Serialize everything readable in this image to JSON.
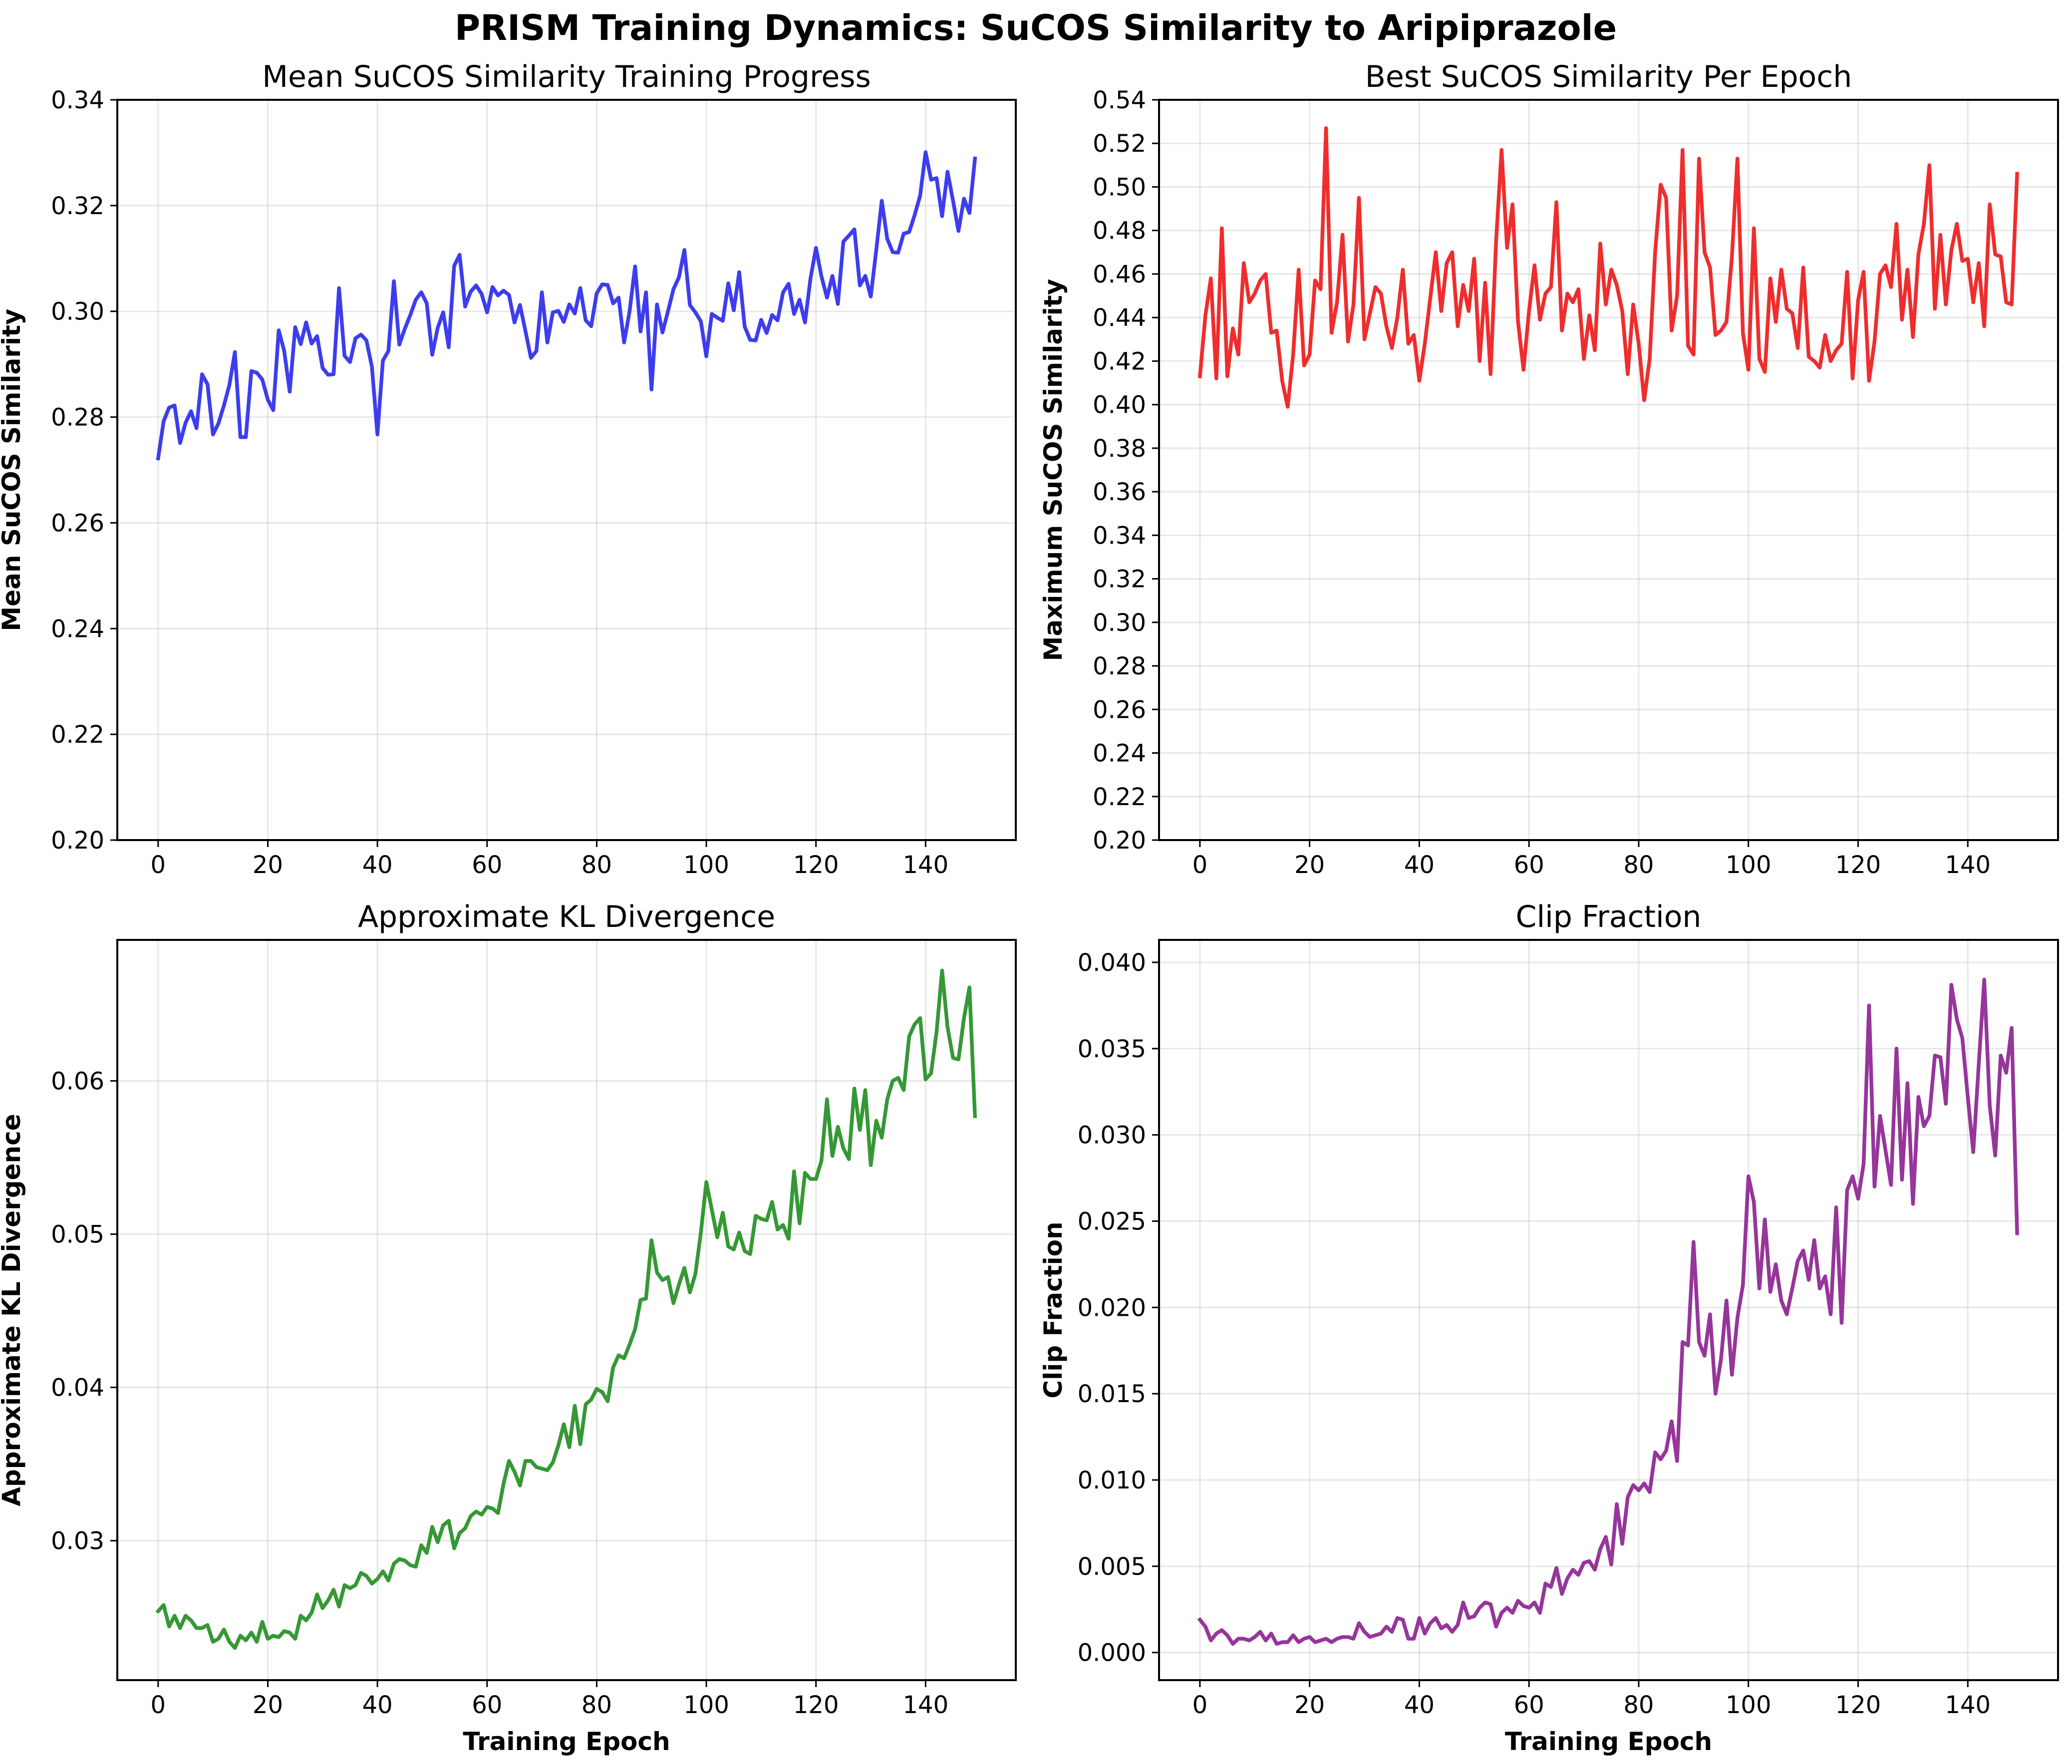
{
  "figure": {
    "title": "PRISM Training Dynamics: SuCOS Similarity to Aripiprazole"
  },
  "chart_data": [
    {
      "type": "line",
      "title": "Mean SuCOS Similarity Training Progress",
      "xlabel": "",
      "ylabel": "Mean SuCOS Similarity",
      "xlim": [
        -7.45,
        156.45
      ],
      "ylim": [
        0.2,
        0.34
      ],
      "xticks": [
        0,
        20,
        40,
        60,
        80,
        100,
        120,
        140
      ],
      "xtick_labels": [
        "0",
        "20",
        "40",
        "60",
        "80",
        "100",
        "120",
        "140"
      ],
      "yticks": [
        0.2,
        0.22,
        0.24,
        0.26,
        0.28,
        0.3,
        0.32,
        0.34
      ],
      "ytick_labels": [
        "0.20",
        "0.22",
        "0.24",
        "0.26",
        "0.28",
        "0.30",
        "0.32",
        "0.34"
      ],
      "grid": true,
      "color": "#3333ee",
      "series": [
        {
          "values": [
            0.2722,
            0.2792,
            0.2818,
            0.2822,
            0.2751,
            0.2789,
            0.2811,
            0.2779,
            0.2881,
            0.2862,
            0.2767,
            0.2788,
            0.2822,
            0.2861,
            0.2923,
            0.2762,
            0.2762,
            0.2887,
            0.2884,
            0.2871,
            0.2833,
            0.2813,
            0.2964,
            0.2925,
            0.2848,
            0.297,
            0.2938,
            0.2979,
            0.2939,
            0.2953,
            0.2893,
            0.288,
            0.2881,
            0.3044,
            0.2916,
            0.2904,
            0.2949,
            0.2956,
            0.2945,
            0.2895,
            0.2767,
            0.2907,
            0.2925,
            0.3057,
            0.2937,
            0.2967,
            0.2993,
            0.3022,
            0.3036,
            0.3015,
            0.2918,
            0.2969,
            0.2998,
            0.2932,
            0.3086,
            0.3107,
            0.3009,
            0.3037,
            0.3049,
            0.3033,
            0.2998,
            0.3046,
            0.303,
            0.3039,
            0.3031,
            0.2979,
            0.3012,
            0.2963,
            0.2912,
            0.2925,
            0.3036,
            0.2941,
            0.2998,
            0.3001,
            0.298,
            0.3013,
            0.2996,
            0.3044,
            0.2983,
            0.2972,
            0.3034,
            0.3051,
            0.305,
            0.3015,
            0.3026,
            0.2941,
            0.3,
            0.3085,
            0.2962,
            0.3036,
            0.2852,
            0.3013,
            0.296,
            0.3,
            0.3042,
            0.3064,
            0.3116,
            0.3012,
            0.2998,
            0.2981,
            0.2915,
            0.2995,
            0.2988,
            0.2982,
            0.3053,
            0.3002,
            0.3074,
            0.2971,
            0.2946,
            0.2945,
            0.2984,
            0.2959,
            0.2993,
            0.2983,
            0.3036,
            0.3052,
            0.2995,
            0.3022,
            0.2979,
            0.3062,
            0.312,
            0.3066,
            0.3026,
            0.3067,
            0.3014,
            0.3132,
            0.3143,
            0.3155,
            0.3049,
            0.3067,
            0.3028,
            0.3116,
            0.3209,
            0.3137,
            0.3112,
            0.3111,
            0.3147,
            0.315,
            0.3182,
            0.3219,
            0.3301,
            0.3249,
            0.3252,
            0.318,
            0.3264,
            0.3209,
            0.3152,
            0.3213,
            0.3186,
            0.3289
          ]
        }
      ]
    },
    {
      "type": "line",
      "title": "Best SuCOS Similarity Per Epoch",
      "xlabel": "",
      "ylabel": "Maximum SuCOS Similarity",
      "xlim": [
        -7.45,
        156.45
      ],
      "ylim": [
        0.2,
        0.54
      ],
      "xticks": [
        0,
        20,
        40,
        60,
        80,
        100,
        120,
        140
      ],
      "xtick_labels": [
        "0",
        "20",
        "40",
        "60",
        "80",
        "100",
        "120",
        "140"
      ],
      "yticks": [
        0.2,
        0.22,
        0.24,
        0.26,
        0.28,
        0.3,
        0.32,
        0.34,
        0.36,
        0.38,
        0.4,
        0.42,
        0.44,
        0.46,
        0.48,
        0.5,
        0.52,
        0.54
      ],
      "ytick_labels": [
        "0.20",
        "0.22",
        "0.24",
        "0.26",
        "0.28",
        "0.30",
        "0.32",
        "0.34",
        "0.36",
        "0.38",
        "0.40",
        "0.42",
        "0.44",
        "0.46",
        "0.48",
        "0.50",
        "0.52",
        "0.54"
      ],
      "grid": true,
      "color": "#ee2222",
      "series": [
        {
          "values": [
            0.413,
            0.441,
            0.458,
            0.412,
            0.481,
            0.413,
            0.435,
            0.423,
            0.465,
            0.447,
            0.451,
            0.457,
            0.46,
            0.433,
            0.434,
            0.411,
            0.399,
            0.423,
            0.462,
            0.418,
            0.423,
            0.457,
            0.453,
            0.527,
            0.433,
            0.447,
            0.478,
            0.429,
            0.446,
            0.495,
            0.43,
            0.442,
            0.454,
            0.451,
            0.436,
            0.426,
            0.44,
            0.462,
            0.428,
            0.432,
            0.411,
            0.428,
            0.449,
            0.47,
            0.443,
            0.465,
            0.47,
            0.436,
            0.455,
            0.443,
            0.467,
            0.42,
            0.456,
            0.414,
            0.475,
            0.517,
            0.472,
            0.492,
            0.438,
            0.416,
            0.443,
            0.464,
            0.439,
            0.451,
            0.454,
            0.493,
            0.434,
            0.451,
            0.447,
            0.453,
            0.421,
            0.441,
            0.425,
            0.474,
            0.446,
            0.462,
            0.455,
            0.443,
            0.414,
            0.446,
            0.428,
            0.402,
            0.421,
            0.47,
            0.501,
            0.495,
            0.434,
            0.45,
            0.517,
            0.427,
            0.423,
            0.513,
            0.47,
            0.463,
            0.432,
            0.434,
            0.438,
            0.468,
            0.513,
            0.433,
            0.416,
            0.481,
            0.421,
            0.415,
            0.458,
            0.438,
            0.462,
            0.444,
            0.442,
            0.426,
            0.463,
            0.422,
            0.42,
            0.417,
            0.432,
            0.42,
            0.425,
            0.428,
            0.461,
            0.412,
            0.448,
            0.461,
            0.411,
            0.429,
            0.46,
            0.464,
            0.454,
            0.483,
            0.439,
            0.462,
            0.431,
            0.469,
            0.483,
            0.51,
            0.444,
            0.478,
            0.446,
            0.471,
            0.483,
            0.466,
            0.467,
            0.447,
            0.465,
            0.436,
            0.492,
            0.469,
            0.468,
            0.447,
            0.446,
            0.506
          ]
        }
      ]
    },
    {
      "type": "line",
      "title": "Approximate KL Divergence",
      "xlabel": "Training Epoch",
      "ylabel": "Approximate KL Divergence",
      "xlim": [
        -7.45,
        156.45
      ],
      "ylim": [
        0.0209,
        0.0692
      ],
      "xticks": [
        0,
        20,
        40,
        60,
        80,
        100,
        120,
        140
      ],
      "xtick_labels": [
        "0",
        "20",
        "40",
        "60",
        "80",
        "100",
        "120",
        "140"
      ],
      "yticks": [
        0.03,
        0.04,
        0.05,
        0.06
      ],
      "ytick_labels": [
        "0.03",
        "0.04",
        "0.05",
        "0.06"
      ],
      "grid": true,
      "color": "#2a922a",
      "series": [
        {
          "values": [
            0.0254,
            0.0258,
            0.0244,
            0.0251,
            0.0243,
            0.0251,
            0.0248,
            0.0243,
            0.0243,
            0.0245,
            0.0234,
            0.0236,
            0.0242,
            0.0234,
            0.023,
            0.0238,
            0.0235,
            0.024,
            0.0234,
            0.0247,
            0.0236,
            0.0238,
            0.0237,
            0.0241,
            0.024,
            0.0236,
            0.0251,
            0.0248,
            0.0253,
            0.0265,
            0.0256,
            0.0261,
            0.0268,
            0.0257,
            0.0271,
            0.0269,
            0.0271,
            0.0279,
            0.0277,
            0.0272,
            0.0275,
            0.028,
            0.0274,
            0.0285,
            0.0288,
            0.0287,
            0.0284,
            0.0283,
            0.0297,
            0.0292,
            0.0309,
            0.0299,
            0.031,
            0.0313,
            0.0295,
            0.0305,
            0.0308,
            0.0316,
            0.0319,
            0.0317,
            0.0322,
            0.0321,
            0.0318,
            0.0337,
            0.0352,
            0.0345,
            0.0336,
            0.0352,
            0.0352,
            0.0348,
            0.0347,
            0.0346,
            0.0351,
            0.0362,
            0.0376,
            0.0361,
            0.0388,
            0.0363,
            0.0389,
            0.0392,
            0.0399,
            0.0397,
            0.0391,
            0.0413,
            0.0421,
            0.0419,
            0.0428,
            0.0438,
            0.0457,
            0.0458,
            0.0496,
            0.0475,
            0.047,
            0.0472,
            0.0455,
            0.0467,
            0.0478,
            0.0462,
            0.0474,
            0.0501,
            0.0534,
            0.0516,
            0.0498,
            0.0514,
            0.0492,
            0.049,
            0.0501,
            0.0489,
            0.0487,
            0.0512,
            0.051,
            0.0509,
            0.0521,
            0.0503,
            0.0506,
            0.0497,
            0.0541,
            0.0507,
            0.054,
            0.0536,
            0.0536,
            0.0548,
            0.0588,
            0.0551,
            0.057,
            0.0556,
            0.0549,
            0.0595,
            0.0568,
            0.0594,
            0.0545,
            0.0574,
            0.0563,
            0.0588,
            0.06,
            0.0602,
            0.0594,
            0.0629,
            0.0637,
            0.0641,
            0.0601,
            0.0605,
            0.0632,
            0.0672,
            0.0635,
            0.0615,
            0.0614,
            0.0641,
            0.0661,
            0.0577
          ]
        }
      ]
    },
    {
      "type": "line",
      "title": "Clip Fraction",
      "xlabel": "Training Epoch",
      "ylabel": "Clip Fraction",
      "xlim": [
        -7.45,
        156.45
      ],
      "ylim": [
        -0.0016,
        0.0413
      ],
      "xticks": [
        0,
        20,
        40,
        60,
        80,
        100,
        120,
        140
      ],
      "xtick_labels": [
        "0",
        "20",
        "40",
        "60",
        "80",
        "100",
        "120",
        "140"
      ],
      "yticks": [
        0.0,
        0.005,
        0.01,
        0.015,
        0.02,
        0.025,
        0.03,
        0.035,
        0.04
      ],
      "ytick_labels": [
        "0.000",
        "0.005",
        "0.010",
        "0.015",
        "0.020",
        "0.025",
        "0.030",
        "0.035",
        "0.040"
      ],
      "grid": true,
      "color": "#902a95",
      "series": [
        {
          "values": [
            0.0019,
            0.0015,
            0.0007,
            0.0011,
            0.0013,
            0.001,
            0.0005,
            0.0008,
            0.0008,
            0.0007,
            0.0009,
            0.0012,
            0.0007,
            0.0011,
            0.0005,
            0.0006,
            0.0006,
            0.001,
            0.0006,
            0.0008,
            0.0009,
            0.0006,
            0.0007,
            0.0008,
            0.0006,
            0.0008,
            0.0009,
            0.0009,
            0.0008,
            0.0017,
            0.0012,
            0.0009,
            0.001,
            0.0011,
            0.0015,
            0.0012,
            0.002,
            0.0019,
            0.0008,
            0.0008,
            0.002,
            0.0011,
            0.0017,
            0.002,
            0.0014,
            0.0016,
            0.0012,
            0.0016,
            0.0029,
            0.002,
            0.0021,
            0.0026,
            0.0029,
            0.0028,
            0.0015,
            0.0023,
            0.0026,
            0.0023,
            0.003,
            0.0027,
            0.0026,
            0.0029,
            0.0023,
            0.004,
            0.0038,
            0.0049,
            0.0034,
            0.0043,
            0.0048,
            0.0045,
            0.0052,
            0.0053,
            0.0048,
            0.006,
            0.0067,
            0.0051,
            0.0086,
            0.0063,
            0.009,
            0.0097,
            0.0094,
            0.0098,
            0.0093,
            0.0116,
            0.0112,
            0.0117,
            0.0134,
            0.0111,
            0.018,
            0.0178,
            0.0238,
            0.018,
            0.0172,
            0.0196,
            0.015,
            0.017,
            0.0204,
            0.0161,
            0.0194,
            0.0213,
            0.0276,
            0.0261,
            0.0211,
            0.0251,
            0.0209,
            0.0225,
            0.0204,
            0.0196,
            0.0211,
            0.0227,
            0.0233,
            0.0216,
            0.0239,
            0.0211,
            0.0218,
            0.0196,
            0.0258,
            0.0191,
            0.0268,
            0.0276,
            0.0263,
            0.0283,
            0.0375,
            0.027,
            0.0311,
            0.0291,
            0.0271,
            0.035,
            0.0274,
            0.033,
            0.026,
            0.0322,
            0.0305,
            0.0311,
            0.0346,
            0.0345,
            0.0318,
            0.0387,
            0.0367,
            0.0356,
            0.0322,
            0.029,
            0.0341,
            0.039,
            0.0317,
            0.0288,
            0.0346,
            0.0336,
            0.0362,
            0.0243
          ]
        }
      ]
    }
  ]
}
